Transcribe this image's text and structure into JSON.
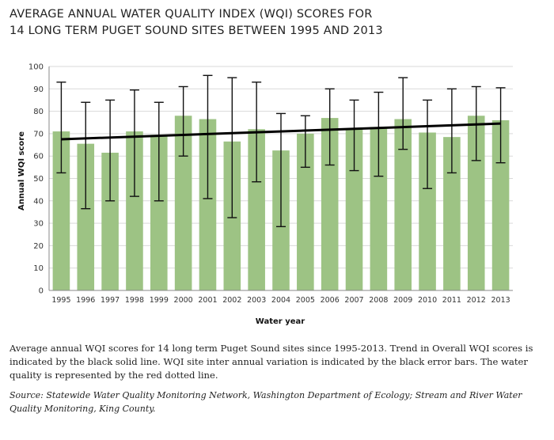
{
  "title_lines": [
    "AVERAGE ANNUAL WATER QUALITY INDEX (WQI) SCORES FOR",
    "14 LONG TERM PUGET SOUND SITES BETWEEN 1995 AND 2013"
  ],
  "caption": "Average annual WQI scores for 14 long term Puget Sound sites since 1995-2013. Trend in Overall WQI scores is indicated by the black solid line. WQI site inter annual variation is indicated by the black error bars. The water quality is represented by the red dotted line.",
  "source": "Source: Statewide Water Quality Monitoring Network, Washington Department of Ecology; Stream and River Water Quality Monitoring, King County.",
  "colors": {
    "bar": "#9dc384",
    "error_bar": "#111111",
    "trend": "#000000",
    "grid": "#d9d9d9"
  },
  "chart_data": {
    "type": "bar",
    "xlabel": "Water year",
    "ylabel": "Annual WQI score",
    "ylim": [
      0,
      100
    ],
    "yticks": [
      0,
      10,
      20,
      30,
      40,
      50,
      60,
      70,
      80,
      90,
      100
    ],
    "grid": true,
    "categories": [
      "1995",
      "1996",
      "1997",
      "1998",
      "1999",
      "2000",
      "2001",
      "2002",
      "2003",
      "2004",
      "2005",
      "2006",
      "2007",
      "2008",
      "2009",
      "2010",
      "2011",
      "2012",
      "2013"
    ],
    "values": [
      71,
      65.5,
      61.5,
      71,
      69.5,
      78,
      76.5,
      66.5,
      72,
      62.5,
      70,
      77,
      72,
      73,
      76.5,
      70.5,
      68.5,
      78,
      76
    ],
    "error_low": [
      52.5,
      36.5,
      40,
      42,
      40,
      60,
      41,
      32.5,
      48.5,
      28.5,
      55,
      56,
      53.5,
      51,
      63,
      45.5,
      52.5,
      58,
      57
    ],
    "error_high": [
      93,
      84,
      85,
      89.5,
      84,
      91,
      96,
      95,
      93,
      79,
      78,
      90,
      85,
      88.5,
      95,
      85,
      90,
      91,
      90.5
    ],
    "trend": {
      "start": 67.5,
      "end": 74.5
    }
  }
}
